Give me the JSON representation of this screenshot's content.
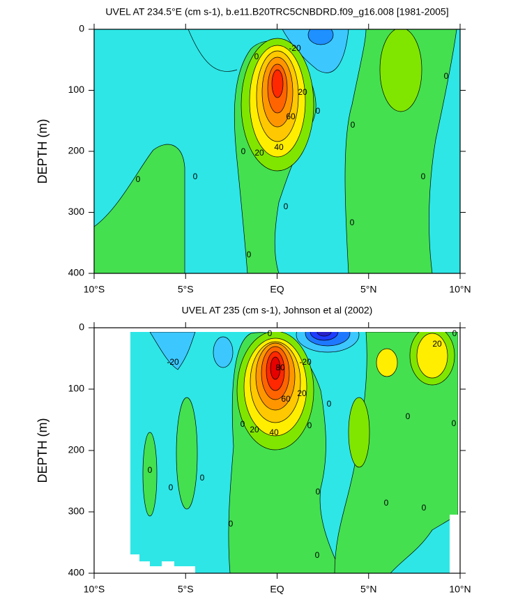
{
  "chart_data": [
    {
      "type": "contour",
      "title": "UVEL AT 234.5°E (cm s-1), b.e11.B20TRC5CNBDRD.f09_g16.008 [1981-2005]",
      "ylabel": "DEPTH (m)",
      "xlim": [
        -10,
        10
      ],
      "xticks": [
        {
          "value": -10,
          "label": "10°S"
        },
        {
          "value": -5,
          "label": "5°S"
        },
        {
          "value": 0,
          "label": "EQ"
        },
        {
          "value": 5,
          "label": "5°N"
        },
        {
          "value": 10,
          "label": "10°N"
        }
      ],
      "ylim": [
        0,
        400
      ],
      "yticks": [
        0,
        100,
        200,
        300,
        400
      ],
      "y_reversed": true,
      "contour_labels": [
        -20,
        0,
        20,
        60,
        40,
        20,
        0,
        0,
        0,
        0,
        0,
        0,
        0,
        0,
        0,
        0
      ]
    },
    {
      "type": "contour",
      "title": "UVEL AT 235 (cm s-1), Johnson et al (2002)",
      "ylabel": "DEPTH (m)",
      "xlim": [
        -10,
        10
      ],
      "xticks": [
        {
          "value": -10,
          "label": "10°S"
        },
        {
          "value": -5,
          "label": "5°S"
        },
        {
          "value": 0,
          "label": "EQ"
        },
        {
          "value": 5,
          "label": "5°N"
        },
        {
          "value": 10,
          "label": "10°N"
        }
      ],
      "ylim": [
        0,
        400
      ],
      "yticks": [
        0,
        100,
        200,
        300,
        400
      ],
      "y_reversed": true,
      "contour_labels": [
        -20,
        -20,
        0,
        80,
        60,
        20,
        40,
        20,
        0,
        0,
        0,
        0,
        0,
        0,
        0,
        0,
        0,
        0,
        0,
        0,
        0,
        20,
        0
      ]
    }
  ]
}
